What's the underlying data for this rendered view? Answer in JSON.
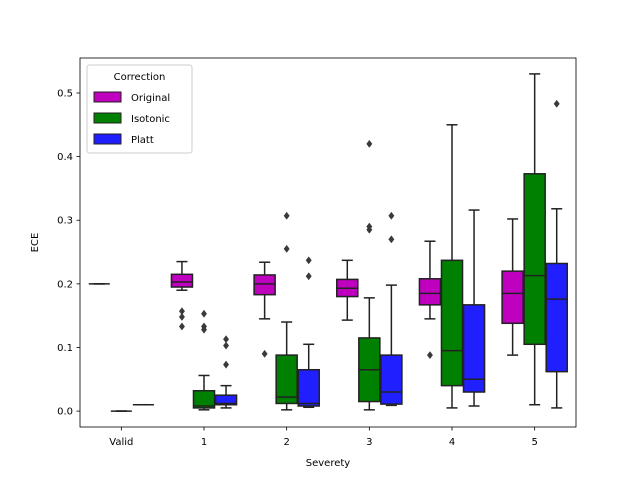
{
  "chart_data": {
    "type": "boxplot",
    "xlabel": "Severety",
    "ylabel": "ECE",
    "ylim": [
      -0.025,
      0.555
    ],
    "yticks": [
      0.0,
      0.1,
      0.2,
      0.3,
      0.4,
      0.5
    ],
    "ytick_labels": [
      "0.0",
      "0.1",
      "0.2",
      "0.3",
      "0.4",
      "0.5"
    ],
    "categories": [
      "Valid",
      "1",
      "2",
      "3",
      "4",
      "5"
    ],
    "legend": {
      "title": "Correction",
      "placement": "top-left"
    },
    "series": [
      {
        "name": "Original",
        "color": "#bf00bf",
        "boxes": [
          {
            "min": 0.2,
            "q1": 0.2,
            "median": 0.2,
            "q3": 0.2,
            "max": 0.2,
            "outliers": []
          },
          {
            "min": 0.19,
            "q1": 0.195,
            "median": 0.203,
            "q3": 0.215,
            "max": 0.235,
            "outliers": [
              0.157,
              0.148,
              0.133
            ]
          },
          {
            "min": 0.145,
            "q1": 0.183,
            "median": 0.2,
            "q3": 0.214,
            "max": 0.234,
            "outliers": [
              0.09
            ]
          },
          {
            "min": 0.143,
            "q1": 0.18,
            "median": 0.193,
            "q3": 0.207,
            "max": 0.237,
            "outliers": []
          },
          {
            "min": 0.145,
            "q1": 0.167,
            "median": 0.185,
            "q3": 0.208,
            "max": 0.267,
            "outliers": [
              0.088
            ]
          },
          {
            "min": 0.088,
            "q1": 0.138,
            "median": 0.185,
            "q3": 0.22,
            "max": 0.302,
            "outliers": []
          }
        ]
      },
      {
        "name": "Isotonic",
        "color": "#008000",
        "boxes": [
          {
            "min": 0.0,
            "q1": 0.0,
            "median": 0.0,
            "q3": 0.0,
            "max": 0.0,
            "outliers": []
          },
          {
            "min": 0.002,
            "q1": 0.005,
            "median": 0.008,
            "q3": 0.032,
            "max": 0.056,
            "outliers": [
              0.153,
              0.133,
              0.128
            ]
          },
          {
            "min": 0.002,
            "q1": 0.012,
            "median": 0.022,
            "q3": 0.088,
            "max": 0.14,
            "outliers": [
              0.307,
              0.255
            ]
          },
          {
            "min": 0.002,
            "q1": 0.015,
            "median": 0.065,
            "q3": 0.115,
            "max": 0.178,
            "outliers": [
              0.42,
              0.29,
              0.285
            ]
          },
          {
            "min": 0.005,
            "q1": 0.04,
            "median": 0.095,
            "q3": 0.237,
            "max": 0.45,
            "outliers": []
          },
          {
            "min": 0.01,
            "q1": 0.105,
            "median": 0.213,
            "q3": 0.373,
            "max": 0.53,
            "outliers": []
          }
        ]
      },
      {
        "name": "Platt",
        "color": "#1f1fff",
        "boxes": [
          {
            "min": 0.01,
            "q1": 0.01,
            "median": 0.01,
            "q3": 0.01,
            "max": 0.01,
            "outliers": []
          },
          {
            "min": 0.005,
            "q1": 0.01,
            "median": 0.012,
            "q3": 0.025,
            "max": 0.04,
            "outliers": [
              0.113,
              0.103,
              0.073
            ]
          },
          {
            "min": 0.006,
            "q1": 0.008,
            "median": 0.012,
            "q3": 0.065,
            "max": 0.105,
            "outliers": [
              0.237,
              0.212
            ]
          },
          {
            "min": 0.009,
            "q1": 0.011,
            "median": 0.03,
            "q3": 0.088,
            "max": 0.198,
            "outliers": [
              0.307,
              0.27
            ]
          },
          {
            "min": 0.008,
            "q1": 0.03,
            "median": 0.05,
            "q3": 0.167,
            "max": 0.316,
            "outliers": []
          },
          {
            "min": 0.005,
            "q1": 0.062,
            "median": 0.176,
            "q3": 0.232,
            "max": 0.318,
            "outliers": [
              0.483
            ]
          }
        ]
      }
    ]
  }
}
